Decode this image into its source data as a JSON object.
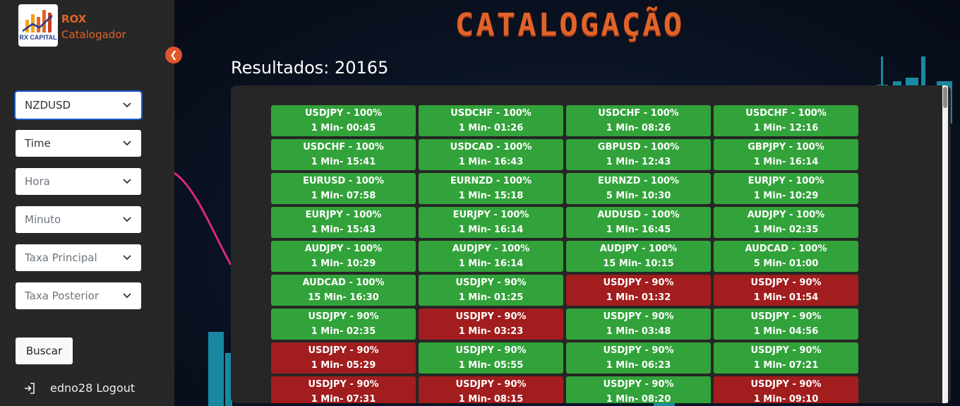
{
  "brand": {
    "logo_text": "RX CAPITAL",
    "name": "ROX",
    "subtitle": "Catalogador"
  },
  "filters": [
    {
      "label": "NZDUSD",
      "muted": false,
      "active": true
    },
    {
      "label": "Time",
      "muted": false,
      "active": false
    },
    {
      "label": "Hora",
      "muted": true,
      "active": false
    },
    {
      "label": "Minuto",
      "muted": true,
      "active": false
    },
    {
      "label": "Taxa Principal",
      "muted": true,
      "active": false
    },
    {
      "label": "Taxa Posterior",
      "muted": true,
      "active": false
    }
  ],
  "search_button": "Buscar",
  "user": {
    "label": "edno28 Logout"
  },
  "icons": {
    "collapse": "chevron-left-icon",
    "logout": "logout-icon",
    "dropdown": "chevron-down-icon"
  },
  "colors": {
    "brand_orange": "#e0642a",
    "win_green": "#32a33a",
    "loss_red": "#a21d1d",
    "sidebar_bg": "#272727",
    "panel_bg": "#262626"
  },
  "main": {
    "title": "CATALOGAÇÃO",
    "results_label": "Resultados: 20165"
  },
  "cards": [
    {
      "line1": "USDJPY - 100%",
      "line2": "1 Min- 00:45",
      "status": "green"
    },
    {
      "line1": "USDCHF - 100%",
      "line2": "1 Min- 01:26",
      "status": "green"
    },
    {
      "line1": "USDCHF - 100%",
      "line2": "1 Min- 08:26",
      "status": "green"
    },
    {
      "line1": "USDCHF - 100%",
      "line2": "1 Min- 12:16",
      "status": "green"
    },
    {
      "line1": "USDCHF - 100%",
      "line2": "1 Min- 15:41",
      "status": "green"
    },
    {
      "line1": "USDCAD - 100%",
      "line2": "1 Min- 16:43",
      "status": "green"
    },
    {
      "line1": "GBPUSD - 100%",
      "line2": "1 Min- 12:43",
      "status": "green"
    },
    {
      "line1": "GBPJPY - 100%",
      "line2": "1 Min- 16:14",
      "status": "green"
    },
    {
      "line1": "EURUSD - 100%",
      "line2": "1 Min- 07:58",
      "status": "green"
    },
    {
      "line1": "EURNZD - 100%",
      "line2": "1 Min- 15:18",
      "status": "green"
    },
    {
      "line1": "EURNZD - 100%",
      "line2": "5 Min- 10:30",
      "status": "green"
    },
    {
      "line1": "EURJPY - 100%",
      "line2": "1 Min- 10:29",
      "status": "green"
    },
    {
      "line1": "EURJPY - 100%",
      "line2": "1 Min- 15:43",
      "status": "green"
    },
    {
      "line1": "EURJPY - 100%",
      "line2": "1 Min- 16:14",
      "status": "green"
    },
    {
      "line1": "AUDUSD - 100%",
      "line2": "1 Min- 16:45",
      "status": "green"
    },
    {
      "line1": "AUDJPY - 100%",
      "line2": "1 Min- 02:35",
      "status": "green"
    },
    {
      "line1": "AUDJPY - 100%",
      "line2": "1 Min- 10:29",
      "status": "green"
    },
    {
      "line1": "AUDJPY - 100%",
      "line2": "1 Min- 16:14",
      "status": "green"
    },
    {
      "line1": "AUDJPY - 100%",
      "line2": "15 Min- 10:15",
      "status": "green"
    },
    {
      "line1": "AUDCAD - 100%",
      "line2": "5 Min- 01:00",
      "status": "green"
    },
    {
      "line1": "AUDCAD - 100%",
      "line2": "15 Min- 16:30",
      "status": "green"
    },
    {
      "line1": "USDJPY - 90%",
      "line2": "1 Min- 01:25",
      "status": "green"
    },
    {
      "line1": "USDJPY - 90%",
      "line2": "1 Min- 01:32",
      "status": "red"
    },
    {
      "line1": "USDJPY - 90%",
      "line2": "1 Min- 01:54",
      "status": "red"
    },
    {
      "line1": "USDJPY - 90%",
      "line2": "1 Min- 02:35",
      "status": "green"
    },
    {
      "line1": "USDJPY - 90%",
      "line2": "1 Min- 03:23",
      "status": "red"
    },
    {
      "line1": "USDJPY - 90%",
      "line2": "1 Min- 03:48",
      "status": "green"
    },
    {
      "line1": "USDJPY - 90%",
      "line2": "1 Min- 04:56",
      "status": "green"
    },
    {
      "line1": "USDJPY - 90%",
      "line2": "1 Min- 05:29",
      "status": "red"
    },
    {
      "line1": "USDJPY - 90%",
      "line2": "1 Min- 05:55",
      "status": "green"
    },
    {
      "line1": "USDJPY - 90%",
      "line2": "1 Min- 06:23",
      "status": "green"
    },
    {
      "line1": "USDJPY - 90%",
      "line2": "1 Min- 07:21",
      "status": "green"
    },
    {
      "line1": "USDJPY - 90%",
      "line2": "1 Min- 07:31",
      "status": "red"
    },
    {
      "line1": "USDJPY - 90%",
      "line2": "1 Min- 08:15",
      "status": "red"
    },
    {
      "line1": "USDJPY - 90%",
      "line2": "1 Min- 08:20",
      "status": "green"
    },
    {
      "line1": "USDJPY - 90%",
      "line2": "1 Min- 09:10",
      "status": "red"
    }
  ]
}
